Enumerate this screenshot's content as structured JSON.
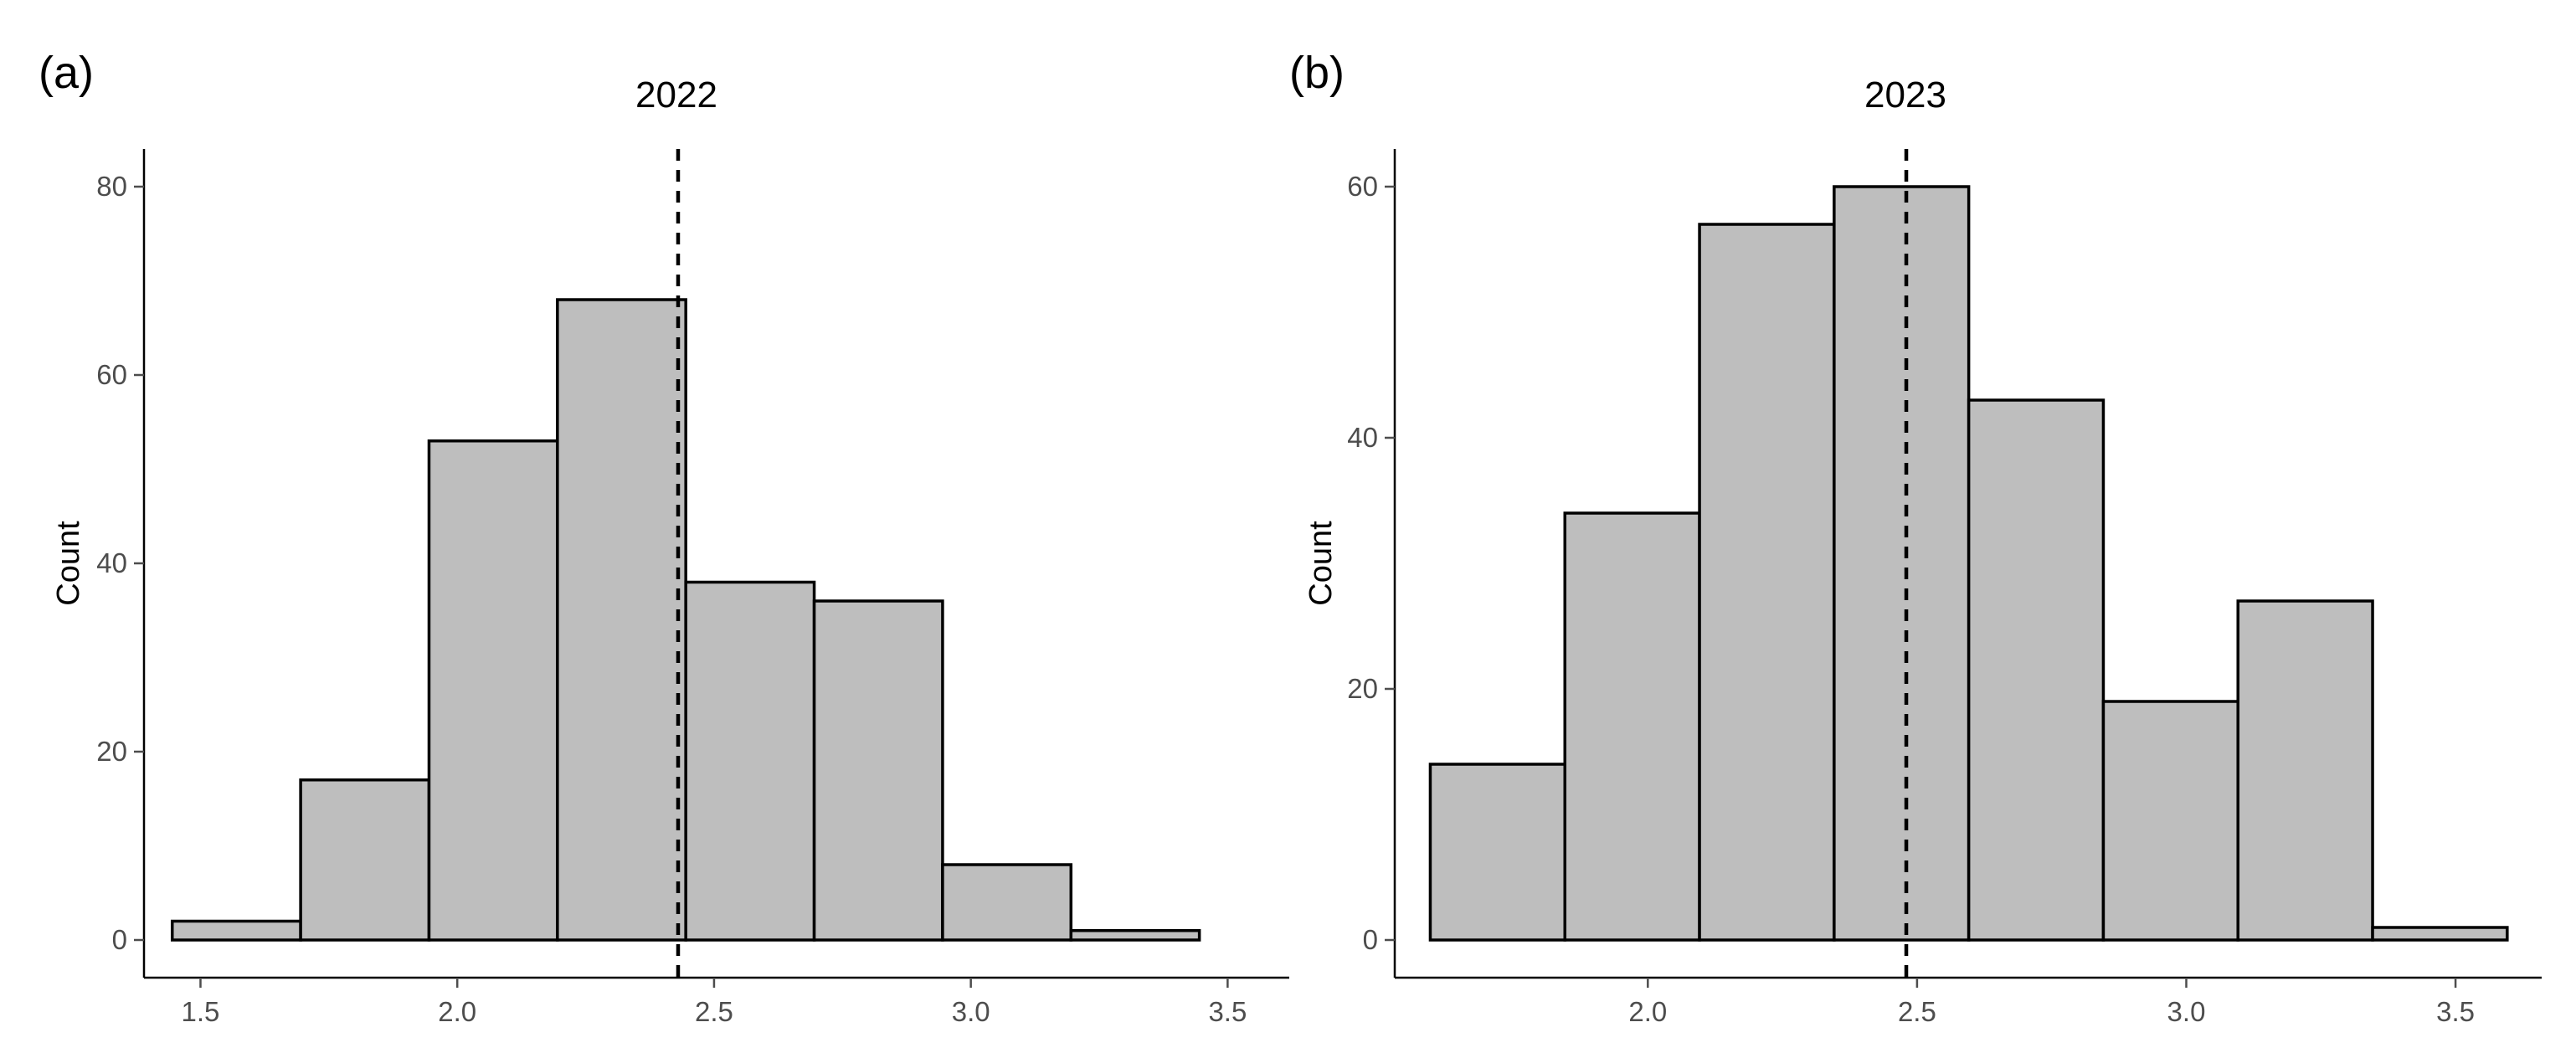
{
  "chart_data": [
    {
      "type": "bar",
      "panel_label": "(a)",
      "title": "2022",
      "xlabel": "",
      "ylabel": "Count",
      "xlim": [
        1.39,
        3.62
      ],
      "ylim": [
        -4,
        84
      ],
      "xticks": [
        1.5,
        2.0,
        2.5,
        3.0,
        3.5
      ],
      "xtick_labels": [
        "1.5",
        "2.0",
        "2.5",
        "3.0",
        "3.5"
      ],
      "yticks": [
        0,
        20,
        40,
        60,
        80
      ],
      "ytick_labels": [
        "0",
        "20",
        "40",
        "60",
        "80"
      ],
      "bin_edges": [
        1.445,
        1.695,
        1.945,
        2.195,
        2.445,
        2.695,
        2.945,
        3.195,
        3.445
      ],
      "values": [
        2,
        17,
        53,
        68,
        38,
        36,
        8,
        1
      ],
      "mean_line_x": 2.43,
      "grid": false,
      "colors": {
        "fill": "#bebebe",
        "edge": "#000000"
      }
    },
    {
      "type": "bar",
      "panel_label": "(b)",
      "title": "2023",
      "xlabel": "",
      "ylabel": "Count",
      "xlim": [
        1.53,
        3.66
      ],
      "ylim": [
        -3,
        63
      ],
      "xticks": [
        2.0,
        2.5,
        3.0,
        3.5
      ],
      "xtick_labels": [
        "2.0",
        "2.5",
        "3.0",
        "3.5"
      ],
      "yticks": [
        0,
        20,
        40,
        60
      ],
      "ytick_labels": [
        "0",
        "20",
        "40",
        "60"
      ],
      "bin_edges": [
        1.596,
        1.846,
        2.096,
        2.346,
        2.596,
        2.846,
        3.096,
        3.346,
        3.596
      ],
      "values": [
        14,
        34,
        57,
        60,
        43,
        19,
        27,
        1
      ],
      "mean_line_x": 2.48,
      "grid": false,
      "colors": {
        "fill": "#bebebe",
        "edge": "#000000"
      }
    }
  ]
}
